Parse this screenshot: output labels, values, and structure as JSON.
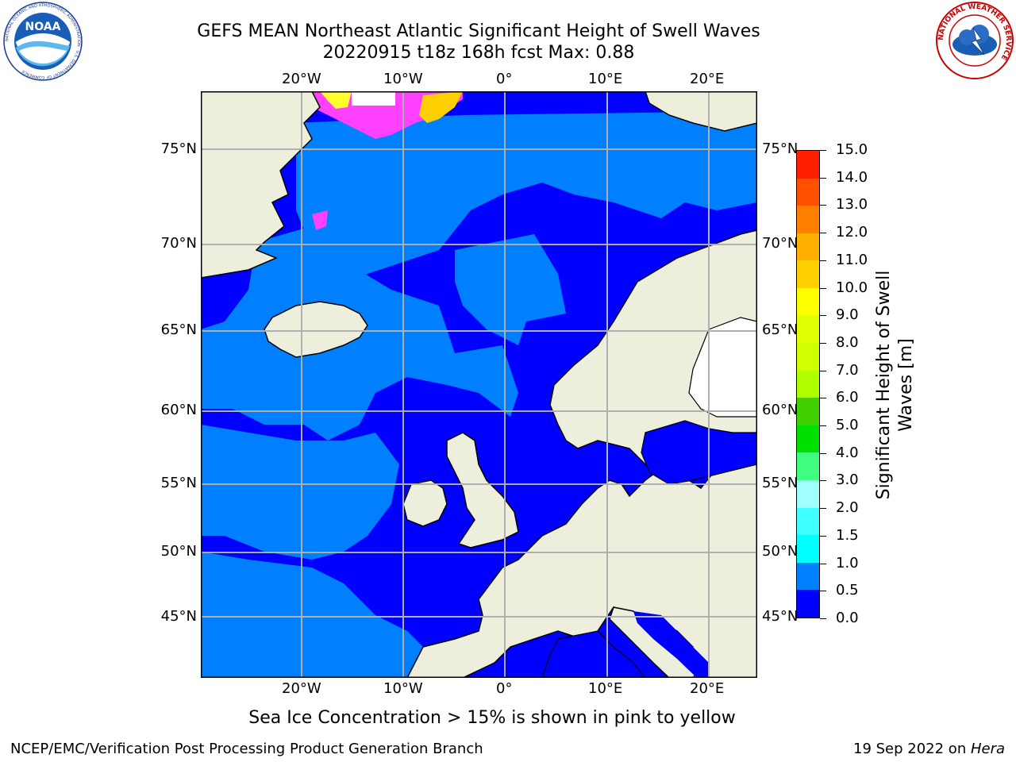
{
  "title": {
    "line1": "GEFS MEAN Northeast Atlantic Significant Height of Swell Waves",
    "line2": "20220915 t18z 168h fcst   Max: 0.88"
  },
  "map": {
    "projection": "lat-lon",
    "lon_labels": [
      "20°W",
      "10°W",
      "0°",
      "10°E",
      "20°E"
    ],
    "lat_labels": [
      "75°N",
      "70°N",
      "65°N",
      "60°N",
      "55°N",
      "50°N",
      "45°N"
    ],
    "colors": {
      "land": "#eeeedd",
      "swell_0_05": "#0000ff",
      "swell_05_10": "#0080ff",
      "grid": "#b0b0b0",
      "coast": "#000000",
      "ice_low": "#ff40ff",
      "ice_high": "#ffff30"
    }
  },
  "colorbar": {
    "title_line1": "Significant Height of Swell",
    "title_line2": "Waves [m]",
    "tick_labels": [
      "0.0",
      "0.5",
      "1.0",
      "1.5",
      "2.0",
      "3.0",
      "4.0",
      "5.0",
      "6.0",
      "7.0",
      "8.0",
      "9.0",
      "10.0",
      "11.0",
      "12.0",
      "13.0",
      "14.0",
      "15.0"
    ],
    "segment_colors": [
      "#0000ff",
      "#0080ff",
      "#00ffff",
      "#40ffff",
      "#a0ffff",
      "#40ff80",
      "#00e000",
      "#40d000",
      "#b0ff00",
      "#d0ff00",
      "#e0ff00",
      "#ffff00",
      "#ffd000",
      "#ffb000",
      "#ff8000",
      "#ff5000",
      "#ff2000"
    ]
  },
  "ice_note": "Sea Ice Concentration > 15% is shown in pink to yellow",
  "footer": {
    "left": "NCEP/EMC/Verification Post Processing Product Generation Branch",
    "date": "19 Sep 2022 on ",
    "machine": "Hera"
  },
  "logos": {
    "noaa_text": "NOAA",
    "noaa_ring": "NATIONAL OCEANIC AND ATMOSPHERIC ADMINISTRATION · U.S. DEPARTMENT OF COMMERCE",
    "nws_ring": "NATIONAL WEATHER SERVICE"
  }
}
